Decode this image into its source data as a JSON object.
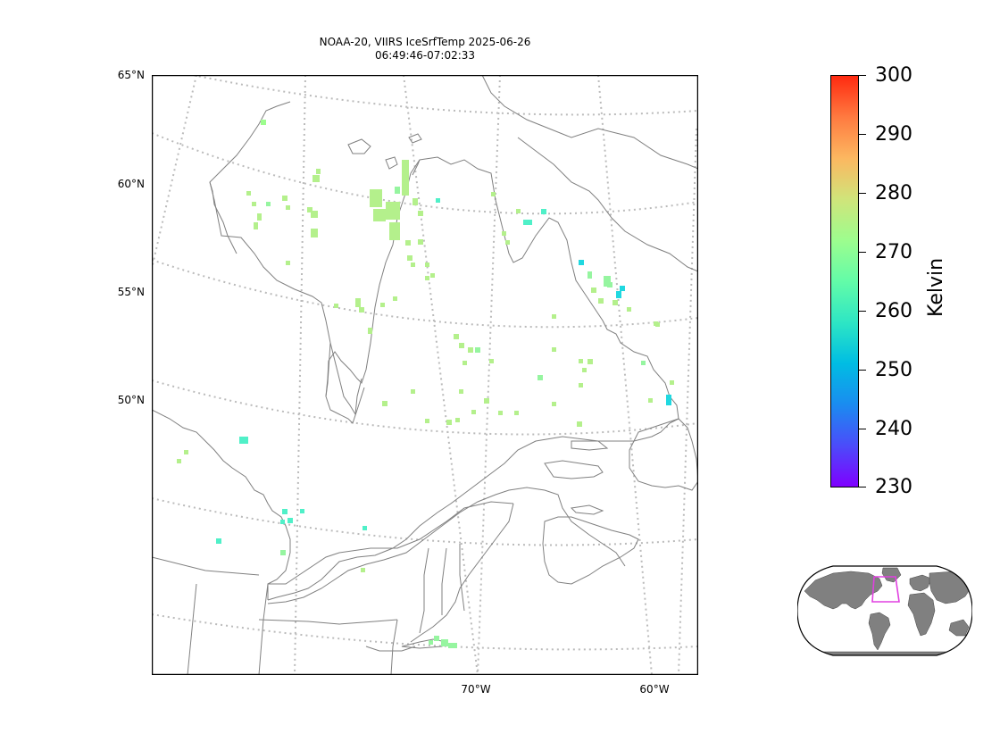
{
  "title": {
    "line1": "NOAA-20, VIIRS IceSrfTemp 2025-06-26",
    "line2": "06:49:46-07:02:33"
  },
  "lat_labels": [
    "65°N",
    "60°N",
    "55°N",
    "50°N"
  ],
  "lon_labels": [
    "70°W",
    "60°W"
  ],
  "colorbar": {
    "unit": "Kelvin",
    "ticks": [
      "300",
      "290",
      "280",
      "270",
      "260",
      "250",
      "240",
      "230"
    ],
    "min": 230,
    "max": 300,
    "colormap": "rainbow"
  },
  "colors": {
    "coastline": "#808080",
    "graticule": "#bbbbbb",
    "data_light_green": "#b4f08c",
    "data_green": "#96f5a0",
    "data_aqua": "#50f0c8",
    "data_cyan": "#20d8e0",
    "inset_box": "#e040e0",
    "inset_land": "#808080"
  }
}
